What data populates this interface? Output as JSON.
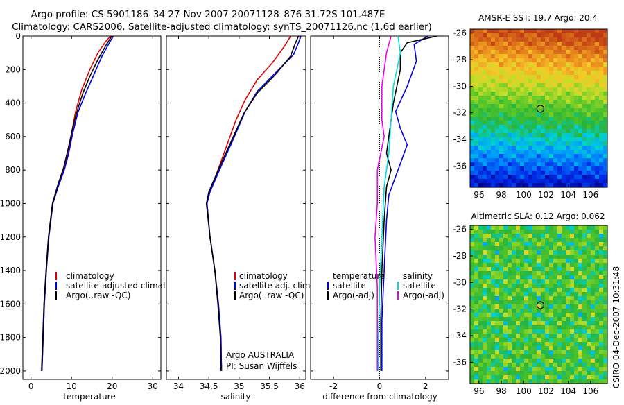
{
  "header": {
    "line1": "Argo profile: CS 5901186_34 27-Nov-2007 20071128_876 31.72S 101.487E",
    "line2": "Climatology: CARS2006. Satellite-adjusted climatology: synTS_20071126.nc (1.6d earlier)"
  },
  "side_label": "CSIRO 04-Dec-2007 10:31:48",
  "colors": {
    "red": "#dd0000",
    "blue": "#0000dd",
    "black": "#000000",
    "cyan": "#00e0e0",
    "magenta": "#ee00ee"
  },
  "chart_data": [
    {
      "type": "line",
      "xlabel": "temperature",
      "xlim": [
        -2,
        32
      ],
      "ylim": [
        0,
        2050
      ],
      "xticks": [
        0,
        10,
        20,
        30
      ],
      "yticks": [
        0,
        200,
        400,
        600,
        800,
        1000,
        1200,
        1400,
        1600,
        1800,
        2000
      ],
      "legend": [
        "climatology",
        "satellite-adjusted climatology",
        "Argo(..raw -QC)"
      ],
      "series": [
        {
          "name": "climatology",
          "color": "red",
          "points": [
            [
              19.6,
              0
            ],
            [
              18.5,
              30
            ],
            [
              16.5,
              100
            ],
            [
              14.5,
              200
            ],
            [
              12.5,
              320
            ],
            [
              11,
              450
            ],
            [
              10,
              580
            ],
            [
              9.2,
              700
            ],
            [
              8,
              800
            ],
            [
              6.5,
              900
            ],
            [
              5.3,
              1000
            ],
            [
              4.3,
              1200
            ],
            [
              3.8,
              1400
            ],
            [
              3.3,
              1600
            ],
            [
              3,
              1800
            ],
            [
              2.7,
              2000
            ]
          ]
        },
        {
          "name": "satellite-adjusted climatology",
          "color": "blue",
          "points": [
            [
              20.3,
              0
            ],
            [
              19.3,
              40
            ],
            [
              17.5,
              120
            ],
            [
              15.5,
              230
            ],
            [
              13.5,
              340
            ],
            [
              11.5,
              460
            ],
            [
              10.2,
              590
            ],
            [
              9.3,
              700
            ],
            [
              8.2,
              800
            ],
            [
              6.7,
              900
            ],
            [
              5.4,
              1000
            ],
            [
              4.4,
              1200
            ],
            [
              3.8,
              1400
            ],
            [
              3.3,
              1600
            ],
            [
              3,
              1800
            ],
            [
              2.7,
              2000
            ]
          ]
        },
        {
          "name": "Argo(..raw -QC)",
          "color": "black",
          "points": [
            [
              19.9,
              0
            ],
            [
              18.6,
              50
            ],
            [
              16.5,
              140
            ],
            [
              14.5,
              240
            ],
            [
              12.8,
              340
            ],
            [
              11.2,
              460
            ],
            [
              10,
              580
            ],
            [
              9,
              690
            ],
            [
              8,
              790
            ],
            [
              6.6,
              890
            ],
            [
              5.3,
              1000
            ],
            [
              4.3,
              1200
            ],
            [
              3.7,
              1400
            ],
            [
              3.2,
              1600
            ],
            [
              2.9,
              1800
            ],
            [
              2.6,
              2000
            ]
          ]
        }
      ]
    },
    {
      "type": "line",
      "xlabel": "salinity",
      "xlim": [
        33.8,
        36.1
      ],
      "ylim": [
        0,
        2050
      ],
      "xticks": [
        34,
        34.5,
        35,
        35.5,
        36
      ],
      "legend": [
        "climatology",
        "satellite adj. clim.",
        "Argo(..raw -QC)"
      ],
      "annotation": [
        "Argo AUSTRALIA",
        "PI: Susan Wijffels"
      ],
      "series": [
        {
          "name": "climatology",
          "color": "red",
          "points": [
            [
              35.85,
              0
            ],
            [
              35.75,
              60
            ],
            [
              35.55,
              160
            ],
            [
              35.3,
              260
            ],
            [
              35.1,
              380
            ],
            [
              34.95,
              500
            ],
            [
              34.8,
              650
            ],
            [
              34.65,
              800
            ],
            [
              34.5,
              950
            ],
            [
              34.47,
              1000
            ],
            [
              34.52,
              1200
            ],
            [
              34.6,
              1400
            ],
            [
              34.65,
              1600
            ],
            [
              34.7,
              1800
            ],
            [
              34.71,
              2000
            ]
          ]
        },
        {
          "name": "satellite adj. clim.",
          "color": "blue",
          "points": [
            [
              36.02,
              0
            ],
            [
              35.98,
              40
            ],
            [
              35.9,
              110
            ],
            [
              35.6,
              220
            ],
            [
              35.3,
              330
            ],
            [
              35.1,
              450
            ],
            [
              34.9,
              620
            ],
            [
              34.7,
              780
            ],
            [
              34.52,
              930
            ],
            [
              34.47,
              1000
            ],
            [
              34.52,
              1200
            ],
            [
              34.6,
              1400
            ],
            [
              34.66,
              1600
            ],
            [
              34.7,
              1800
            ],
            [
              34.71,
              2000
            ]
          ]
        },
        {
          "name": "Argo(..raw -QC)",
          "color": "black",
          "points": [
            [
              35.98,
              0
            ],
            [
              35.92,
              50
            ],
            [
              35.85,
              120
            ],
            [
              35.6,
              230
            ],
            [
              35.3,
              340
            ],
            [
              35.08,
              460
            ],
            [
              34.88,
              620
            ],
            [
              34.68,
              780
            ],
            [
              34.5,
              930
            ],
            [
              34.46,
              1000
            ],
            [
              34.52,
              1200
            ],
            [
              34.6,
              1400
            ],
            [
              34.65,
              1600
            ],
            [
              34.69,
              1800
            ],
            [
              34.7,
              2000
            ]
          ]
        }
      ]
    },
    {
      "type": "line",
      "xlabel": "difference from climatology",
      "xlim": [
        -3,
        3
      ],
      "ylim": [
        0,
        2050
      ],
      "xticks": [
        -2,
        0,
        2
      ],
      "legend_left_title": "temperature",
      "legend_right_title": "salinity",
      "legend_left": [
        "satellite",
        "Argo(-adj)"
      ],
      "legend_right": [
        "satellite",
        "Argo(-adj)"
      ],
      "series": [
        {
          "name": "satellite",
          "group": "temperature",
          "color": "blue",
          "points": [
            [
              2.1,
              0
            ],
            [
              1.5,
              50
            ],
            [
              1.6,
              150
            ],
            [
              1.2,
              300
            ],
            [
              0.7,
              450
            ],
            [
              0.9,
              550
            ],
            [
              1.2,
              650
            ],
            [
              0.8,
              800
            ],
            [
              0.4,
              950
            ],
            [
              0.3,
              1100
            ],
            [
              0.2,
              1400
            ],
            [
              0.1,
              1700
            ],
            [
              0.1,
              2000
            ]
          ]
        },
        {
          "name": "Argo(-adj)",
          "group": "temperature",
          "color": "black",
          "points": [
            [
              2.5,
              0
            ],
            [
              1.2,
              40
            ],
            [
              0.9,
              100
            ],
            [
              0.9,
              200
            ],
            [
              0.6,
              400
            ],
            [
              0.4,
              600
            ],
            [
              0.3,
              700
            ],
            [
              0.5,
              800
            ],
            [
              0.3,
              900
            ],
            [
              0.2,
              1100
            ],
            [
              0.1,
              1400
            ],
            [
              0.05,
              1700
            ],
            [
              0.05,
              2000
            ]
          ]
        },
        {
          "name": "satellite",
          "group": "salinity",
          "color": "cyan",
          "points": [
            [
              0.8,
              0
            ],
            [
              0.9,
              100
            ],
            [
              0.6,
              300
            ],
            [
              0.5,
              500
            ],
            [
              0.4,
              700
            ],
            [
              0.2,
              900
            ],
            [
              0.1,
              1200
            ],
            [
              0,
              1500
            ],
            [
              -0.05,
              1800
            ],
            [
              -0.05,
              2000
            ]
          ]
        },
        {
          "name": "Argo(-adj)",
          "group": "salinity",
          "color": "magenta",
          "points": [
            [
              0.5,
              0
            ],
            [
              0.3,
              100
            ],
            [
              0.1,
              300
            ],
            [
              0.1,
              500
            ],
            [
              0.2,
              600
            ],
            [
              -0.1,
              800
            ],
            [
              -0.1,
              1000
            ],
            [
              -0.2,
              1200
            ],
            [
              -0.1,
              1500
            ],
            [
              -0.1,
              1800
            ],
            [
              -0.1,
              2000
            ]
          ]
        }
      ]
    },
    {
      "type": "heatmap",
      "title": "AMSR-E SST: 19.7 Argo: 20.4",
      "xticks": [
        96,
        98,
        100,
        102,
        104,
        106
      ],
      "yticks": [
        -26,
        -28,
        -30,
        -32,
        -34,
        -36
      ],
      "xlim": [
        95.2,
        107.5
      ],
      "ylim": [
        -37.6,
        -25.7
      ],
      "marker": [
        101.5,
        -31.7
      ]
    },
    {
      "type": "heatmap",
      "title": "Altimetric SLA: 0.12 Argo: 0.062",
      "xticks": [
        96,
        98,
        100,
        102,
        104,
        106
      ],
      "yticks": [
        -26,
        -28,
        -30,
        -32,
        -34,
        -36
      ],
      "xlim": [
        95.2,
        107.5
      ],
      "ylim": [
        -37.6,
        -25.7
      ],
      "marker": [
        101.5,
        -31.7
      ]
    }
  ]
}
